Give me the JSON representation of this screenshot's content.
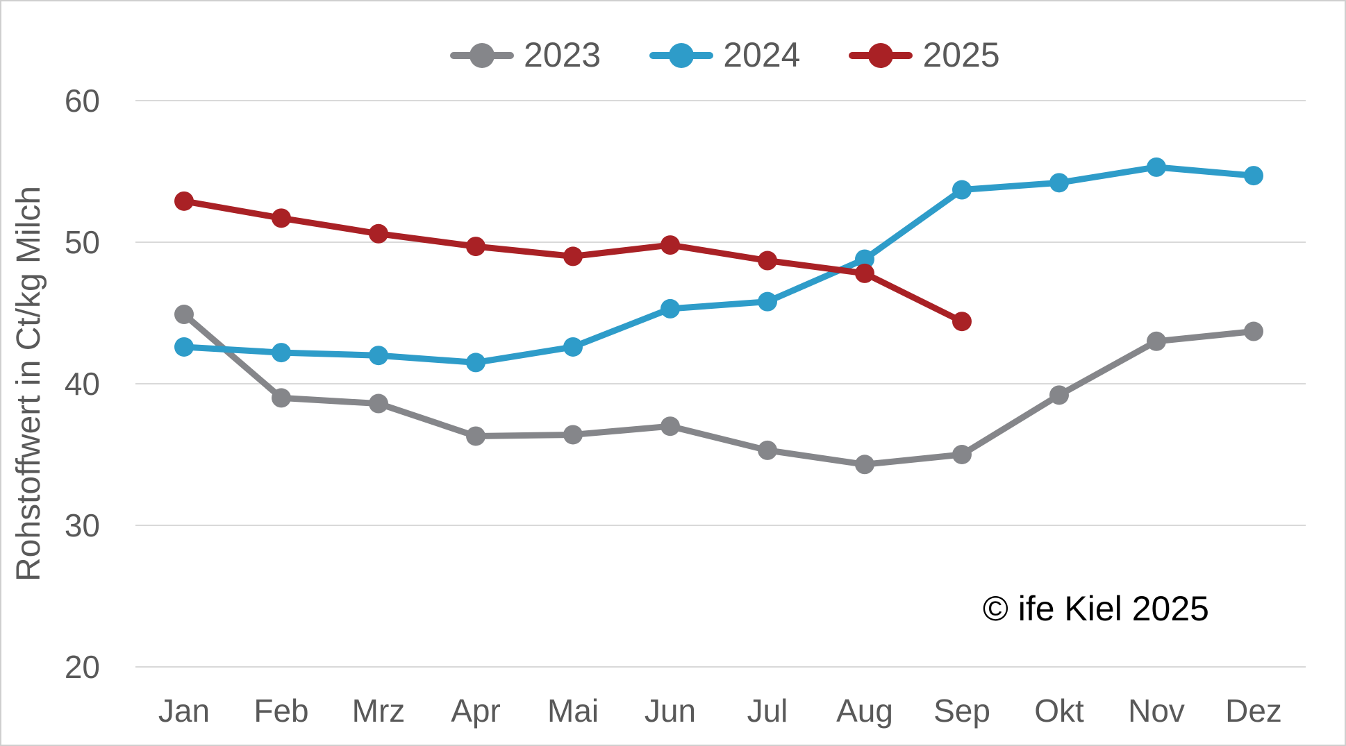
{
  "chart_data": {
    "type": "line",
    "categories": [
      "Jan",
      "Feb",
      "Mrz",
      "Apr",
      "Mai",
      "Jun",
      "Jul",
      "Aug",
      "Sep",
      "Okt",
      "Nov",
      "Dez"
    ],
    "series": [
      {
        "name": "2023",
        "color": "#85868A",
        "values": [
          44.9,
          39.0,
          38.6,
          36.3,
          36.4,
          37.0,
          35.3,
          34.3,
          35.0,
          39.2,
          43.0,
          43.7
        ]
      },
      {
        "name": "2024",
        "color": "#2E9CC9",
        "values": [
          42.6,
          42.2,
          42.0,
          41.5,
          42.6,
          45.3,
          45.8,
          48.8,
          53.7,
          54.2,
          55.3,
          54.7
        ]
      },
      {
        "name": "2025",
        "color": "#A92125",
        "values": [
          52.9,
          51.7,
          50.6,
          49.7,
          49.0,
          49.8,
          48.7,
          47.8,
          44.4,
          null,
          null,
          null
        ]
      }
    ],
    "title": "",
    "xlabel": "",
    "ylabel": "Rohstoffwert in Ct/kg Milch",
    "ylim": [
      20,
      60
    ],
    "yticks": [
      60,
      50,
      40,
      30,
      20
    ],
    "grid": "horizontal",
    "legend_position": "top-center",
    "annotation": "© ife Kiel 2025"
  },
  "colors": {
    "axis_text": "#595959",
    "gridline": "#D9D9D9",
    "annotation_text": "#000000",
    "frame_border": "#CFCFCF",
    "background": "#FFFFFF"
  }
}
